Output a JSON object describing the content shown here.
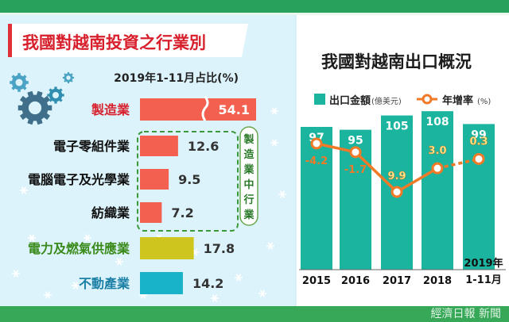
{
  "left_panel": {
    "title": "我國對越南投資之行業別",
    "subtitle": "2019年1-11月占比(%)",
    "bracket_label": "製造業中行業"
  },
  "right_panel": {
    "title": "我國對越南出口概況",
    "legend_export": "出口金額",
    "legend_export_unit": "(億美元)",
    "legend_growth": "年增率",
    "legend_growth_unit": "(%)"
  },
  "watermark": {
    "text": "經濟日報 新聞"
  },
  "colors": {
    "manufacturing": "#f4604f",
    "energy": "#cfc51f",
    "realestate": "#19b3c9",
    "export_bar": "#1bb49f",
    "growth_line": "#f07a27",
    "left_title_bg": "#ffffff",
    "left_bg": "#dcf3fb",
    "header_strip": "#1f9a55",
    "footer_strip": "#36a857"
  },
  "chart_data": [
    {
      "type": "bar",
      "orientation": "horizontal",
      "title": "我國對越南投資之行業別",
      "subtitle": "2019年1-11月占比(%)",
      "categories": [
        "製造業",
        "電子零組件業",
        "電腦電子及光學業",
        "紡織業",
        "電力及燃氣供應業",
        "不動產業"
      ],
      "values": [
        54.1,
        12.6,
        9.5,
        7.2,
        17.8,
        14.2
      ],
      "value_labels": [
        "54.1",
        "12.6",
        "9.5",
        "7.2",
        "17.8",
        "14.2"
      ],
      "bar_colors": [
        "#f4604f",
        "#f4604f",
        "#f4604f",
        "#f4604f",
        "#cfc51f",
        "#19b3c9"
      ],
      "first_bar_truncated": true
    },
    {
      "type": "bar",
      "title": "我國對越南出口概況",
      "categories": [
        "2015",
        "2016",
        "2017",
        "2018",
        "2019年\n1-11月"
      ],
      "category_lines": [
        [
          "2015"
        ],
        [
          "2016"
        ],
        [
          "2017"
        ],
        [
          "2018"
        ],
        [
          "2019年",
          "1-11月"
        ]
      ],
      "series": [
        {
          "name": "出口金額(億美元)",
          "type": "bar",
          "values": [
            97,
            95,
            105,
            108,
            99
          ],
          "labels": [
            "97",
            "95",
            "105",
            "108",
            "99"
          ]
        },
        {
          "name": "年增率(%)",
          "type": "line",
          "values": [
            -4.2,
            -1.7,
            9.9,
            3.0,
            0.3
          ],
          "labels": [
            "-4.2",
            "-1.7",
            "9.9",
            "3.0",
            "0.3"
          ],
          "last_segment_dashed": true
        }
      ],
      "bar_ylim": [
        0,
        120
      ],
      "line_ylim": [
        -8,
        14
      ]
    }
  ]
}
